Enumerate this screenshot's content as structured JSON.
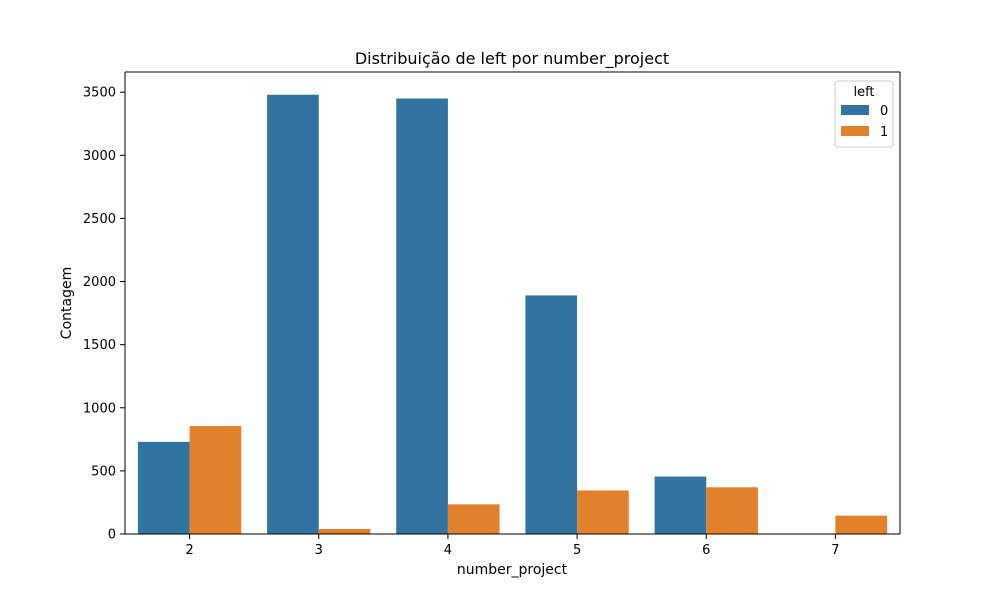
{
  "chart_data": {
    "type": "bar",
    "title": "Distribuição de left por number_project",
    "xlabel": "number_project",
    "ylabel": "Contagem",
    "categories": [
      "2",
      "3",
      "4",
      "5",
      "6",
      "7"
    ],
    "series": [
      {
        "name": "0",
        "values": [
          730,
          3480,
          3450,
          1890,
          455,
          0
        ],
        "color": "#3274a1"
      },
      {
        "name": "1",
        "values": [
          855,
          40,
          235,
          345,
          370,
          145
        ],
        "color": "#e1812c"
      }
    ],
    "ylim": [
      0,
      3660
    ],
    "yticks": [
      0,
      500,
      1000,
      1500,
      2000,
      2500,
      3000,
      3500
    ],
    "legend": {
      "title": "left",
      "position": "top-right"
    },
    "grid": false
  }
}
